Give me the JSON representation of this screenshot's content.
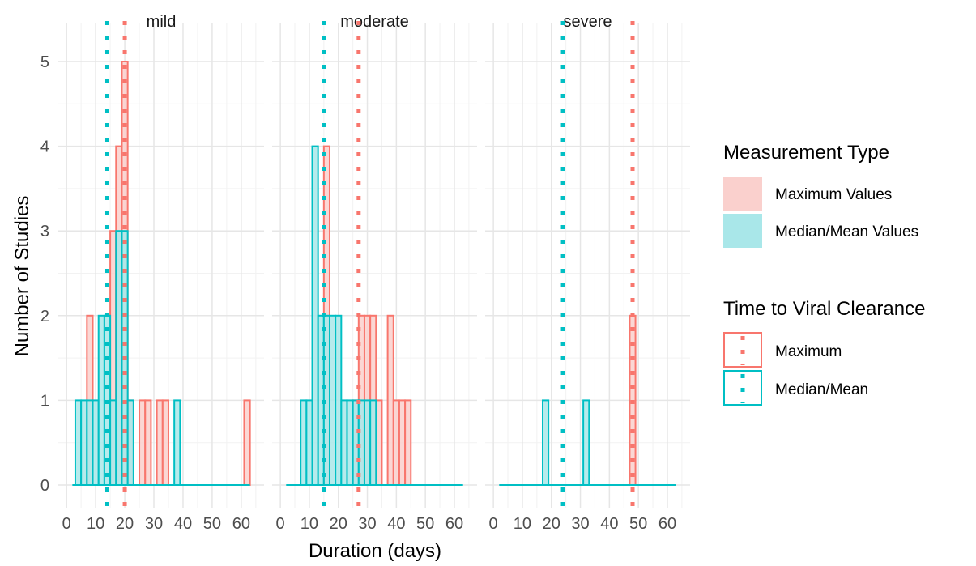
{
  "chart_data": {
    "type": "bar",
    "subtype": "faceted histogram",
    "xlabel": "Duration (days)",
    "ylabel": "Number of Studies",
    "xlim": [
      0,
      65
    ],
    "ylim": [
      0,
      5
    ],
    "x_ticks": [
      "0",
      "10",
      "20",
      "30",
      "40",
      "50",
      "60"
    ],
    "y_ticks": [
      "0",
      "1",
      "2",
      "3",
      "4",
      "5"
    ],
    "bin_width": 2,
    "grid": true,
    "legend_position": "right",
    "colors": {
      "maximum_stroke": "#F8766D",
      "maximum_fill": "#FAD0CD",
      "median_stroke": "#00BFC4",
      "median_fill": "#A9E7E9"
    },
    "facets": [
      {
        "label": "mild",
        "mean_line_median": 14,
        "mean_line_maximum": 20,
        "series": [
          {
            "name": "Maximum Values",
            "bins": [
              {
                "x": 8,
                "count": 2
              },
              {
                "x": 16,
                "count": 3
              },
              {
                "x": 18,
                "count": 4
              },
              {
                "x": 20,
                "count": 5
              },
              {
                "x": 22,
                "count": 1
              },
              {
                "x": 26,
                "count": 1
              },
              {
                "x": 28,
                "count": 1
              },
              {
                "x": 32,
                "count": 1
              },
              {
                "x": 34,
                "count": 1
              },
              {
                "x": 62,
                "count": 1
              }
            ]
          },
          {
            "name": "Median/Mean Values",
            "bins": [
              {
                "x": 4,
                "count": 1
              },
              {
                "x": 6,
                "count": 1
              },
              {
                "x": 8,
                "count": 1
              },
              {
                "x": 10,
                "count": 1
              },
              {
                "x": 12,
                "count": 2
              },
              {
                "x": 14,
                "count": 2
              },
              {
                "x": 16,
                "count": 1
              },
              {
                "x": 18,
                "count": 3
              },
              {
                "x": 20,
                "count": 3
              },
              {
                "x": 22,
                "count": 1
              },
              {
                "x": 38,
                "count": 1
              }
            ]
          }
        ]
      },
      {
        "label": "moderate",
        "mean_line_median": 15,
        "mean_line_maximum": 27,
        "series": [
          {
            "name": "Maximum Values",
            "bins": [
              {
                "x": 16,
                "count": 4
              },
              {
                "x": 26,
                "count": 1
              },
              {
                "x": 28,
                "count": 2
              },
              {
                "x": 30,
                "count": 2
              },
              {
                "x": 32,
                "count": 2
              },
              {
                "x": 34,
                "count": 1
              },
              {
                "x": 38,
                "count": 2
              },
              {
                "x": 40,
                "count": 1
              },
              {
                "x": 42,
                "count": 1
              },
              {
                "x": 44,
                "count": 1
              }
            ]
          },
          {
            "name": "Median/Mean Values",
            "bins": [
              {
                "x": 8,
                "count": 1
              },
              {
                "x": 10,
                "count": 1
              },
              {
                "x": 12,
                "count": 4
              },
              {
                "x": 14,
                "count": 2
              },
              {
                "x": 16,
                "count": 2
              },
              {
                "x": 18,
                "count": 2
              },
              {
                "x": 20,
                "count": 2
              },
              {
                "x": 22,
                "count": 1
              },
              {
                "x": 24,
                "count": 1
              },
              {
                "x": 26,
                "count": 1
              },
              {
                "x": 28,
                "count": 1
              },
              {
                "x": 30,
                "count": 1
              },
              {
                "x": 32,
                "count": 1
              }
            ]
          }
        ]
      },
      {
        "label": "severe",
        "mean_line_median": 24,
        "mean_line_maximum": 48,
        "series": [
          {
            "name": "Maximum Values",
            "bins": [
              {
                "x": 48,
                "count": 2
              }
            ]
          },
          {
            "name": "Median/Mean Values",
            "bins": [
              {
                "x": 18,
                "count": 1
              },
              {
                "x": 32,
                "count": 1
              }
            ]
          }
        ]
      }
    ],
    "legends": [
      {
        "title": "Measurement Type",
        "items": [
          {
            "label": "Maximum Values",
            "key": "maximum"
          },
          {
            "label": "Median/Mean Values",
            "key": "median"
          }
        ]
      },
      {
        "title": "Time to Viral Clearance",
        "items": [
          {
            "label": "Maximum",
            "key": "maximum"
          },
          {
            "label": "Median/Mean",
            "key": "median"
          }
        ]
      }
    ]
  }
}
